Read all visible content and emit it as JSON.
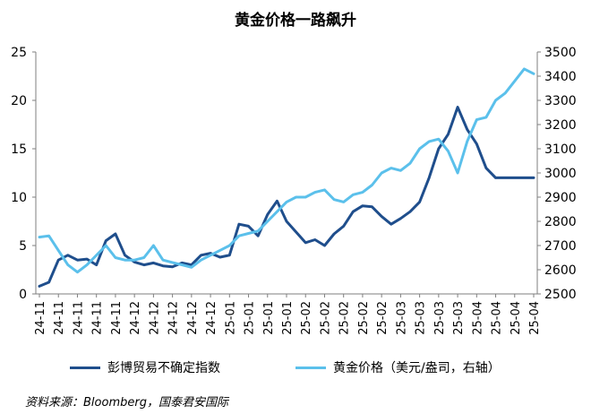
{
  "title": "黄金价格一路飙升",
  "source": "资料来源：Bloomberg，国泰君安国际",
  "chart_data": {
    "type": "line",
    "title": "黄金价格一路飙升",
    "x_tick_labels": [
      "24-11",
      "24-11",
      "24-11",
      "24-11",
      "24-11",
      "24-12",
      "24-12",
      "24-12",
      "24-12",
      "24-12",
      "25-01",
      "25-01",
      "25-01",
      "25-01",
      "25-02",
      "25-02",
      "25-02",
      "25-02",
      "25-02",
      "25-03",
      "25-03",
      "25-03",
      "25-03",
      "25-04",
      "25-04",
      "25-04",
      "25-04"
    ],
    "y_left_ticks": [
      0,
      5,
      10,
      15,
      20,
      25
    ],
    "y_left_range": [
      0,
      25
    ],
    "y_right_ticks": [
      2500,
      2600,
      2700,
      2800,
      2900,
      3000,
      3100,
      3200,
      3300,
      3400,
      3500
    ],
    "y_right_range": [
      2500,
      3500
    ],
    "grid": false,
    "legend_position": "bottom",
    "series": [
      {
        "name": "彭博贸易不确定指数",
        "axis": "left",
        "color": "#1f4e8c",
        "x": [
          0,
          0.5,
          1,
          1.5,
          2,
          2.5,
          3,
          3.5,
          4,
          4.5,
          5,
          5.5,
          6,
          6.5,
          7,
          7.5,
          8,
          8.5,
          9,
          9.5,
          10,
          10.5,
          11,
          11.5,
          12,
          12.5,
          13,
          13.5,
          14,
          14.5,
          15,
          15.5,
          16,
          16.5,
          17,
          17.5,
          18,
          18.5,
          19,
          19.5,
          20,
          20.5,
          21,
          21.5,
          22,
          22.5,
          23,
          23.5,
          24,
          24.5,
          25,
          25.5,
          26
        ],
        "values": [
          0.8,
          1.2,
          3.5,
          4.0,
          3.5,
          3.6,
          3.0,
          5.5,
          6.2,
          4.0,
          3.3,
          3.0,
          3.2,
          2.9,
          2.8,
          3.2,
          3.0,
          4.0,
          4.2,
          3.8,
          4.0,
          7.2,
          7.0,
          6.0,
          8.2,
          9.6,
          7.5,
          6.4,
          5.3,
          5.6,
          5.0,
          6.2,
          7.0,
          8.5,
          9.1,
          9.0,
          8.0,
          7.2,
          7.8,
          8.5,
          9.5,
          12.0,
          15.0,
          16.5,
          19.3,
          17.0,
          15.5,
          13.0,
          12.0,
          12.0,
          12.0,
          12.0,
          12.0
        ]
      },
      {
        "name": "黄金价格（美元/盎司，右轴）",
        "axis": "right",
        "color": "#5bc0eb",
        "x": [
          0,
          0.5,
          1,
          1.5,
          2,
          2.5,
          3,
          3.5,
          4,
          4.5,
          5,
          5.5,
          6,
          6.5,
          7,
          7.5,
          8,
          8.5,
          9,
          9.5,
          10,
          10.5,
          11,
          11.5,
          12,
          12.5,
          13,
          13.5,
          14,
          14.5,
          15,
          15.5,
          16,
          16.5,
          17,
          17.5,
          18,
          18.5,
          19,
          19.5,
          20,
          20.5,
          21,
          21.5,
          22,
          22.5,
          23,
          23.5,
          24,
          24.5,
          25,
          25.5,
          26
        ],
        "values": [
          2735,
          2740,
          2680,
          2620,
          2590,
          2620,
          2660,
          2700,
          2650,
          2640,
          2640,
          2650,
          2700,
          2640,
          2630,
          2620,
          2610,
          2640,
          2660,
          2680,
          2700,
          2740,
          2750,
          2760,
          2800,
          2840,
          2880,
          2900,
          2900,
          2920,
          2930,
          2890,
          2880,
          2910,
          2920,
          2950,
          3000,
          3020,
          3010,
          3040,
          3100,
          3130,
          3140,
          3090,
          3000,
          3130,
          3220,
          3230,
          3300,
          3330,
          3380,
          3430,
          3410
        ]
      }
    ]
  }
}
